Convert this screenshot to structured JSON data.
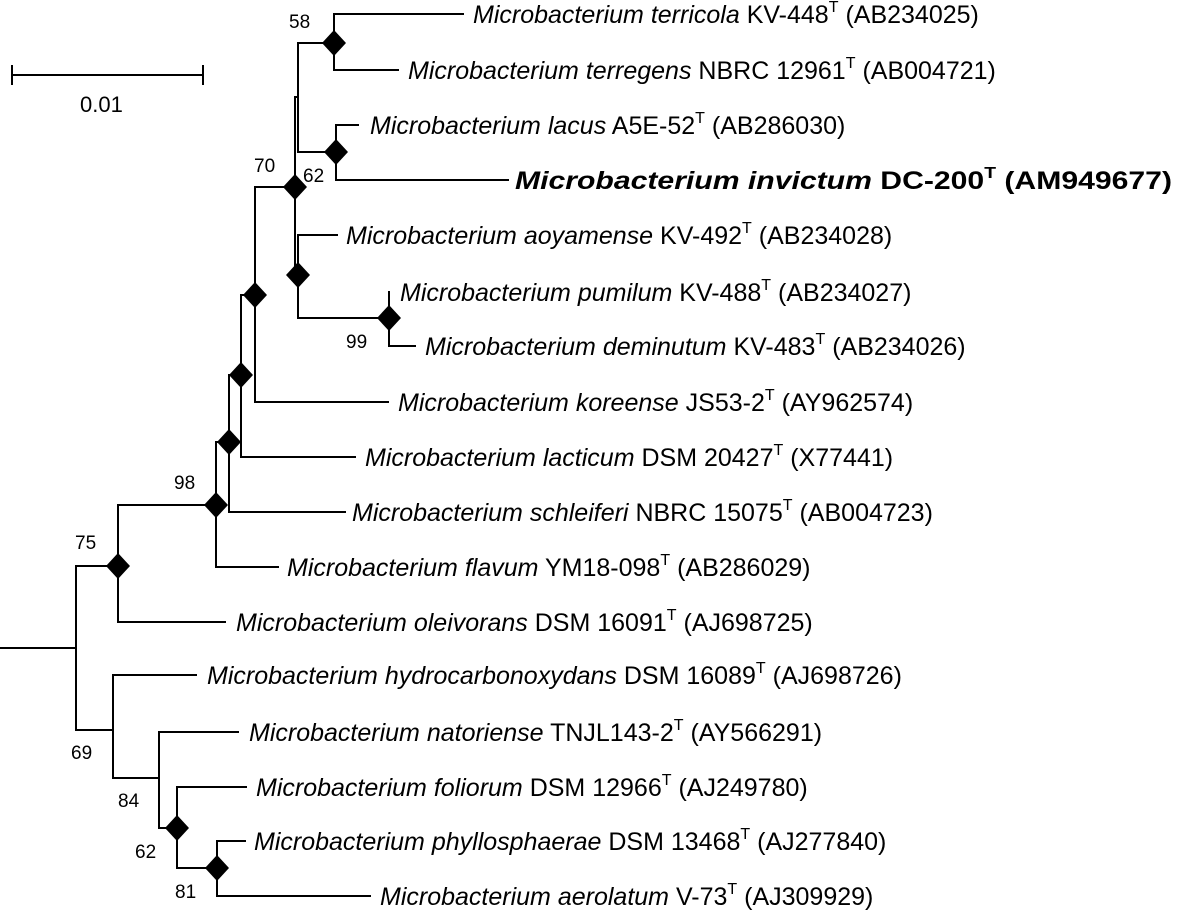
{
  "scale_bar": {
    "label": "0.01"
  },
  "taxa": [
    {
      "genus": "Microbacterium",
      "species": "terricola",
      "strain": "KV-448",
      "type": "T",
      "acc": "(AB234025)"
    },
    {
      "genus": "Microbacterium",
      "species": "terregens",
      "strain": "NBRC 12961",
      "type": "T",
      "acc": "(AB004721)"
    },
    {
      "genus": "Microbacterium",
      "species": "lacus",
      "strain": "A5E-52",
      "type": "T",
      "acc": "(AB286030)"
    },
    {
      "genus": "Microbacterium",
      "species": "invictum",
      "strain": "DC-200",
      "type": "T",
      "acc": "(AM949677)",
      "bold": true
    },
    {
      "genus": "Microbacterium",
      "species": "aoyamense",
      "strain": "KV-492",
      "type": "T",
      "acc": "(AB234028)"
    },
    {
      "genus": "Microbacterium",
      "species": "pumilum",
      "strain": "KV-488",
      "type": "T",
      "acc": "(AB234027)"
    },
    {
      "genus": "Microbacterium",
      "species": "deminutum",
      "strain": "KV-483",
      "type": "T",
      "acc": "(AB234026)"
    },
    {
      "genus": "Microbacterium",
      "species": "koreense",
      "strain": "JS53-2",
      "type": "T",
      "acc": "(AY962574)"
    },
    {
      "genus": "Microbacterium",
      "species": "lacticum",
      "strain": "DSM 20427",
      "type": "T",
      "acc": "(X77441)"
    },
    {
      "genus": "Microbacterium",
      "species": "schleiferi",
      "strain": "NBRC 15075",
      "type": "T",
      "acc": "(AB004723)"
    },
    {
      "genus": "Microbacterium",
      "species": "flavum",
      "strain": "YM18-098",
      "type": "T",
      "acc": "(AB286029)"
    },
    {
      "genus": "Microbacterium",
      "species": "oleivorans",
      "strain": "DSM 16091",
      "type": "T",
      "acc": "(AJ698725)"
    },
    {
      "genus": "Microbacterium",
      "species": "hydrocarbonoxydans",
      "strain": "DSM 16089",
      "type": "T",
      "acc": "(AJ698726)"
    },
    {
      "genus": "Microbacterium",
      "species": "natoriense",
      "strain": "TNJL143-2",
      "type": "T",
      "acc": "(AY566291)"
    },
    {
      "genus": "Microbacterium",
      "species": "foliorum",
      "strain": "DSM 12966",
      "type": "T",
      "acc": "(AJ249780)"
    },
    {
      "genus": "Microbacterium",
      "species": "phyllosphaerae",
      "strain": "DSM 13468",
      "type": "T",
      "acc": "(AJ277840)"
    },
    {
      "genus": "Microbacterium",
      "species": "aerolatum",
      "strain": "V-73",
      "type": "T",
      "acc": "(AJ309929)"
    }
  ],
  "bootstrap": [
    "58",
    "62",
    "70",
    "99",
    "98",
    "75",
    "69",
    "84",
    "62",
    "81"
  ]
}
